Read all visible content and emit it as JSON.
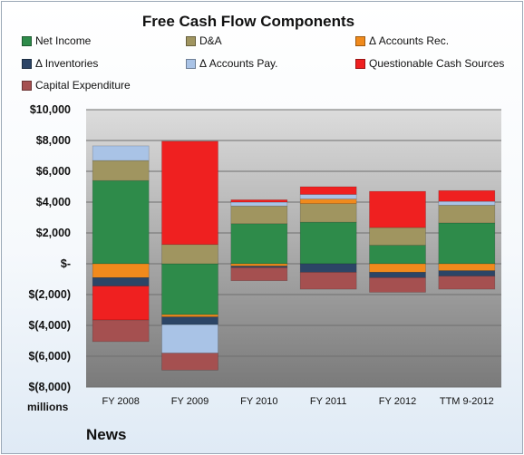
{
  "chart_data": {
    "type": "bar",
    "stacked": true,
    "title": "Free Cash Flow Components",
    "categories": [
      "FY 2008",
      "FY 2009",
      "FY 2010",
      "FY 2011",
      "FY 2012",
      "TTM 9-2012"
    ],
    "ylim": [
      -8000,
      10000
    ],
    "yticks": [
      10000,
      8000,
      6000,
      4000,
      2000,
      0,
      -2000,
      -4000,
      -6000,
      -8000
    ],
    "ytick_labels": [
      "$10,000",
      "$8,000",
      "$6,000",
      "$4,000",
      "$2,000",
      "$-",
      "$(2,000)",
      "$(4,000)",
      "$(6,000)",
      "$(8,000)"
    ],
    "ylabel": "millions",
    "grid": true,
    "legend_position": "top",
    "series": [
      {
        "name": "Net Income",
        "color": "#2e8b4a",
        "values": [
          5400,
          -3300,
          2600,
          2700,
          1200,
          2650
        ]
      },
      {
        "name": "D&A",
        "color": "#a09560",
        "values": [
          1300,
          1250,
          1150,
          1200,
          1150,
          1150
        ]
      },
      {
        "name": "Δ Accounts Rec.",
        "color": "#f08a1c",
        "values": [
          -900,
          -150,
          -150,
          300,
          -550,
          -450
        ]
      },
      {
        "name": "Δ Inventories",
        "color": "#2c4566",
        "values": [
          -550,
          -500,
          -100,
          -550,
          -350,
          -350
        ]
      },
      {
        "name": "Δ Accounts Pay.",
        "color": "#a9c3e6",
        "values": [
          950,
          -1850,
          250,
          300,
          0,
          250
        ]
      },
      {
        "name": "Questionable Cash Sources",
        "color": "#ef2020",
        "values": [
          -2200,
          6700,
          150,
          500,
          2350,
          700
        ]
      },
      {
        "name": "Capital Expenditure",
        "color": "#a55050",
        "values": [
          -1400,
          -1100,
          -850,
          -1100,
          -950,
          -850
        ]
      }
    ]
  },
  "footer": "News"
}
